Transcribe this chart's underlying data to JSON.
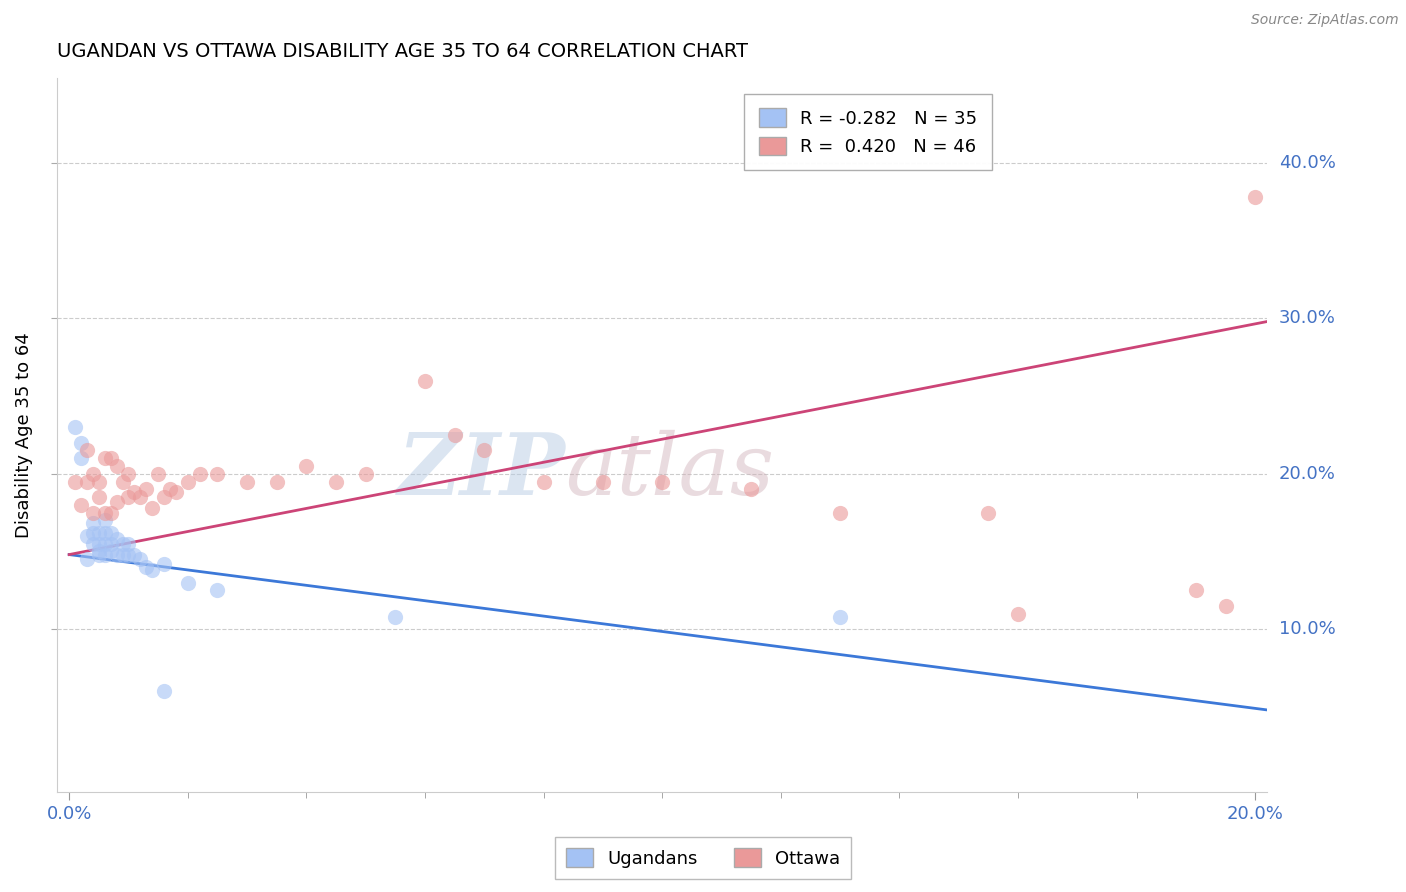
{
  "title": "UGANDAN VS OTTAWA DISABILITY AGE 35 TO 64 CORRELATION CHART",
  "source": "Source: ZipAtlas.com",
  "ylabel": "Disability Age 35 to 64",
  "xlim": [
    -0.002,
    0.202
  ],
  "ylim": [
    -0.005,
    0.455
  ],
  "ytick_values": [
    0.1,
    0.2,
    0.3,
    0.4
  ],
  "ytick_labels": [
    "10.0%",
    "20.0%",
    "30.0%",
    "40.0%"
  ],
  "xtick_values": [
    0.0,
    0.2
  ],
  "xtick_labels": [
    "0.0%",
    "20.0%"
  ],
  "ugandan_color": "#a4c2f4",
  "ottawa_color": "#ea9999",
  "ugandan_line_color": "#3c78d8",
  "ottawa_line_color": "#cc4477",
  "legend_label_ugandan": "R = -0.282   N = 35",
  "legend_label_ottawa": "R =  0.420   N = 46",
  "watermark": "ZIPAtlas",
  "ugandan_x": [
    0.001,
    0.002,
    0.002,
    0.003,
    0.003,
    0.004,
    0.004,
    0.004,
    0.005,
    0.005,
    0.005,
    0.005,
    0.006,
    0.006,
    0.006,
    0.006,
    0.007,
    0.007,
    0.007,
    0.008,
    0.008,
    0.009,
    0.009,
    0.01,
    0.01,
    0.011,
    0.012,
    0.013,
    0.014,
    0.016,
    0.02,
    0.025,
    0.055,
    0.13,
    0.016
  ],
  "ugandan_y": [
    0.23,
    0.22,
    0.21,
    0.16,
    0.145,
    0.155,
    0.162,
    0.168,
    0.15,
    0.155,
    0.162,
    0.148,
    0.148,
    0.155,
    0.162,
    0.17,
    0.15,
    0.155,
    0.162,
    0.148,
    0.158,
    0.148,
    0.155,
    0.148,
    0.155,
    0.148,
    0.145,
    0.14,
    0.138,
    0.142,
    0.13,
    0.125,
    0.108,
    0.108,
    0.06
  ],
  "ottawa_x": [
    0.001,
    0.002,
    0.003,
    0.003,
    0.004,
    0.004,
    0.005,
    0.005,
    0.006,
    0.006,
    0.007,
    0.007,
    0.008,
    0.008,
    0.009,
    0.01,
    0.01,
    0.011,
    0.012,
    0.013,
    0.014,
    0.015,
    0.016,
    0.017,
    0.018,
    0.02,
    0.022,
    0.025,
    0.03,
    0.035,
    0.04,
    0.045,
    0.05,
    0.06,
    0.065,
    0.07,
    0.08,
    0.09,
    0.1,
    0.115,
    0.13,
    0.155,
    0.16,
    0.19,
    0.195,
    0.2
  ],
  "ottawa_y": [
    0.195,
    0.18,
    0.195,
    0.215,
    0.175,
    0.2,
    0.185,
    0.195,
    0.175,
    0.21,
    0.175,
    0.21,
    0.182,
    0.205,
    0.195,
    0.185,
    0.2,
    0.188,
    0.185,
    0.19,
    0.178,
    0.2,
    0.185,
    0.19,
    0.188,
    0.195,
    0.2,
    0.2,
    0.195,
    0.195,
    0.205,
    0.195,
    0.2,
    0.26,
    0.225,
    0.215,
    0.195,
    0.195,
    0.195,
    0.19,
    0.175,
    0.175,
    0.11,
    0.125,
    0.115,
    0.378
  ],
  "ug_line_x0": 0.0,
  "ug_line_y0": 0.148,
  "ug_line_x1": 0.202,
  "ug_line_y1": 0.048,
  "ot_line_x0": 0.0,
  "ot_line_y0": 0.148,
  "ot_line_x1": 0.202,
  "ot_line_y1": 0.298
}
